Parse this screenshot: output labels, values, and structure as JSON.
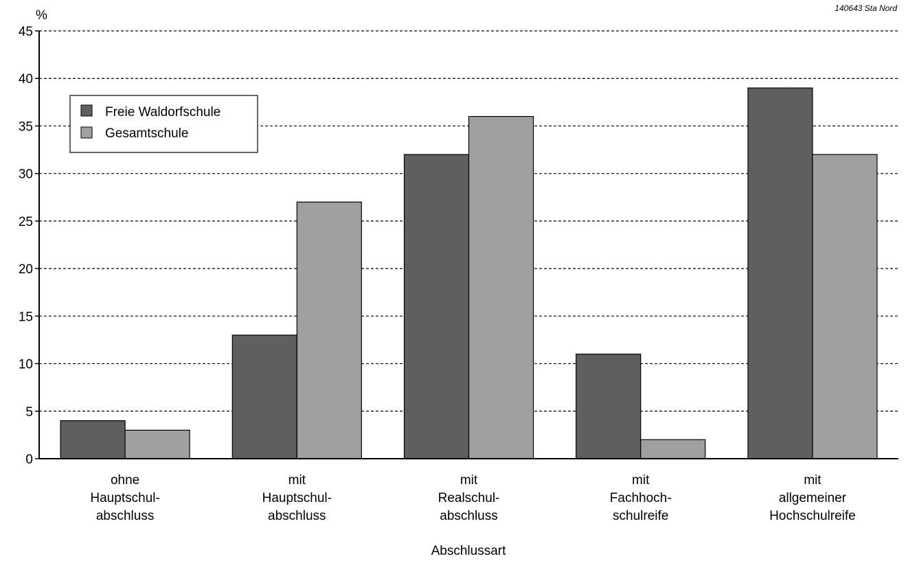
{
  "chart_data": {
    "type": "bar",
    "title": "",
    "ylabel": "%",
    "xlabel": "Abschlussart",
    "ylim": [
      0,
      45
    ],
    "yticks": [
      0,
      5,
      10,
      15,
      20,
      25,
      30,
      35,
      40,
      45
    ],
    "grid": true,
    "legend_position": "top-left",
    "source_note": "140643 Sta Nord",
    "categories": [
      [
        "ohne",
        "Hauptschul-",
        "abschluss"
      ],
      [
        "mit",
        "Hauptschul-",
        "abschluss"
      ],
      [
        "mit",
        "Realschul-",
        "abschluss"
      ],
      [
        "mit",
        "Fachhoch-",
        "schulreife"
      ],
      [
        "mit",
        "allgemeiner",
        "Hochschulreife"
      ]
    ],
    "series": [
      {
        "name": "Freie Waldorfschule",
        "color": "#5f5f5f",
        "values": [
          4,
          13,
          32,
          11,
          39
        ]
      },
      {
        "name": "Gesamtschule",
        "color": "#a0a0a0",
        "values": [
          3,
          27,
          36,
          2,
          32
        ]
      }
    ]
  }
}
